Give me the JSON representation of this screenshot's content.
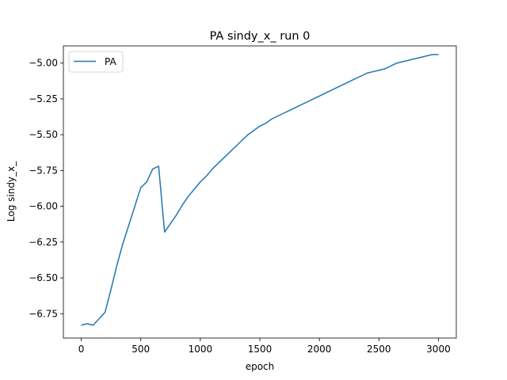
{
  "chart_data": {
    "type": "line",
    "title": "PA sindy_x_ run 0",
    "xlabel": "epoch",
    "ylabel": "Log sindy_x_",
    "xlim": [
      -150,
      3150
    ],
    "ylim": [
      -6.92,
      -4.88
    ],
    "xticks": [
      0,
      500,
      1000,
      1500,
      2000,
      2500,
      3000
    ],
    "xtick_labels": [
      "0",
      "500",
      "1000",
      "1500",
      "2000",
      "2500",
      "3000"
    ],
    "yticks": [
      -6.75,
      -6.5,
      -6.25,
      -6.0,
      -5.75,
      -5.5,
      -5.25,
      -5.0
    ],
    "ytick_labels": [
      "−6.75",
      "−6.50",
      "−6.25",
      "−6.00",
      "−5.75",
      "−5.50",
      "−5.25",
      "−5.00"
    ],
    "grid": false,
    "legend_position": "top-left",
    "series": [
      {
        "name": "PA",
        "color": "#1f77b4",
        "x": [
          0,
          50,
          100,
          200,
          250,
          300,
          350,
          400,
          450,
          500,
          550,
          600,
          650,
          700,
          750,
          800,
          850,
          900,
          950,
          1000,
          1050,
          1100,
          1150,
          1200,
          1250,
          1300,
          1350,
          1400,
          1450,
          1500,
          1550,
          1600,
          1650,
          1700,
          1750,
          1800,
          1850,
          1900,
          1950,
          2000,
          2050,
          2100,
          2150,
          2200,
          2250,
          2300,
          2350,
          2400,
          2450,
          2500,
          2550,
          2600,
          2650,
          2700,
          2750,
          2800,
          2850,
          2900,
          2950,
          3000
        ],
        "y": [
          -6.83,
          -6.82,
          -6.83,
          -6.74,
          -6.58,
          -6.41,
          -6.26,
          -6.13,
          -6.0,
          -5.87,
          -5.83,
          -5.74,
          -5.72,
          -6.18,
          -6.12,
          -6.06,
          -5.99,
          -5.93,
          -5.88,
          -5.83,
          -5.79,
          -5.74,
          -5.7,
          -5.66,
          -5.62,
          -5.58,
          -5.54,
          -5.5,
          -5.47,
          -5.44,
          -5.42,
          -5.39,
          -5.37,
          -5.35,
          -5.33,
          -5.31,
          -5.29,
          -5.27,
          -5.25,
          -5.23,
          -5.21,
          -5.19,
          -5.17,
          -5.15,
          -5.13,
          -5.11,
          -5.09,
          -5.07,
          -5.06,
          -5.05,
          -5.04,
          -5.02,
          -5.0,
          -4.99,
          -4.98,
          -4.97,
          -4.96,
          -4.95,
          -4.94,
          -4.94
        ]
      }
    ]
  }
}
